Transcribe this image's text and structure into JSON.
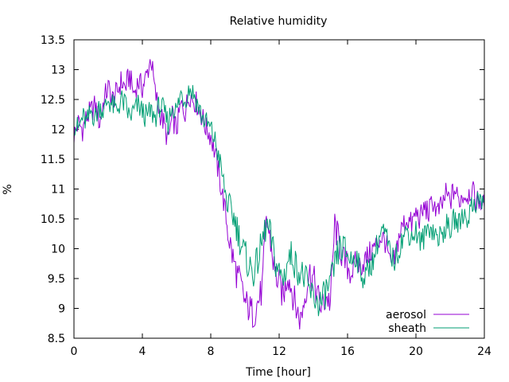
{
  "chart_data": {
    "type": "line",
    "title": "Relative humidity",
    "xlabel": "Time [hour]",
    "ylabel": "%",
    "xlim": [
      0,
      24
    ],
    "ylim": [
      8.5,
      13.5
    ],
    "xticks": [
      0,
      4,
      8,
      12,
      16,
      20,
      24
    ],
    "yticks": [
      8.5,
      9,
      9.5,
      10,
      10.5,
      11,
      11.5,
      12,
      12.5,
      13,
      13.5
    ],
    "grid": false,
    "legend_position": "bottom-right",
    "anchor_step_hours": 0.25,
    "series": [
      {
        "name": "aerosol",
        "color": "#9400d3",
        "values": [
          11.9,
          12.1,
          12.0,
          12.2,
          12.3,
          12.4,
          12.1,
          12.5,
          12.7,
          12.5,
          12.6,
          12.8,
          12.7,
          12.9,
          12.6,
          12.8,
          12.7,
          12.9,
          13.2,
          12.6,
          12.3,
          12.1,
          11.8,
          12.2,
          12.0,
          12.4,
          12.3,
          12.6,
          12.5,
          12.4,
          12.2,
          12.0,
          11.9,
          11.6,
          11.2,
          10.8,
          10.3,
          9.9,
          9.6,
          9.4,
          9.1,
          9.0,
          8.9,
          9.1,
          9.3,
          10.5,
          10.1,
          9.6,
          9.4,
          9.2,
          9.6,
          9.3,
          9.0,
          8.8,
          9.2,
          9.6,
          9.5,
          9.2,
          9.0,
          9.2,
          9.1,
          10.4,
          10.1,
          9.8,
          9.7,
          9.6,
          9.8,
          9.7,
          9.8,
          9.9,
          10.0,
          10.1,
          10.2,
          10.1,
          9.7,
          9.8,
          10.2,
          10.4,
          10.5,
          10.4,
          10.6,
          10.5,
          10.7,
          10.6,
          10.8,
          10.6,
          10.7,
          10.9,
          10.8,
          11.0,
          10.8,
          10.9,
          10.9,
          11.0,
          10.8,
          10.8,
          10.7
        ]
      },
      {
        "name": "sheath",
        "color": "#009e73",
        "values": [
          12.1,
          12.0,
          12.2,
          12.1,
          12.3,
          12.2,
          12.4,
          12.3,
          12.5,
          12.4,
          12.3,
          12.5,
          12.4,
          12.2,
          12.3,
          12.4,
          12.3,
          12.2,
          12.3,
          12.2,
          12.4,
          12.3,
          12.1,
          12.4,
          12.3,
          12.6,
          12.5,
          12.7,
          12.6,
          12.4,
          12.2,
          12.1,
          12.0,
          11.8,
          11.5,
          11.1,
          10.7,
          10.6,
          10.4,
          10.1,
          9.9,
          9.7,
          9.6,
          9.8,
          10.1,
          10.4,
          10.2,
          9.8,
          9.6,
          9.5,
          9.8,
          9.9,
          9.7,
          9.6,
          9.5,
          9.3,
          9.2,
          9.1,
          9.1,
          9.3,
          9.4,
          9.7,
          10.0,
          10.0,
          9.9,
          9.8,
          9.9,
          9.6,
          9.5,
          9.7,
          9.8,
          10.1,
          10.3,
          10.2,
          9.9,
          9.8,
          10.0,
          10.2,
          10.3,
          10.2,
          10.3,
          10.1,
          10.2,
          10.4,
          10.3,
          10.2,
          10.2,
          10.4,
          10.3,
          10.5,
          10.4,
          10.6,
          10.5,
          10.7,
          10.8,
          10.8,
          10.8
        ]
      }
    ]
  }
}
